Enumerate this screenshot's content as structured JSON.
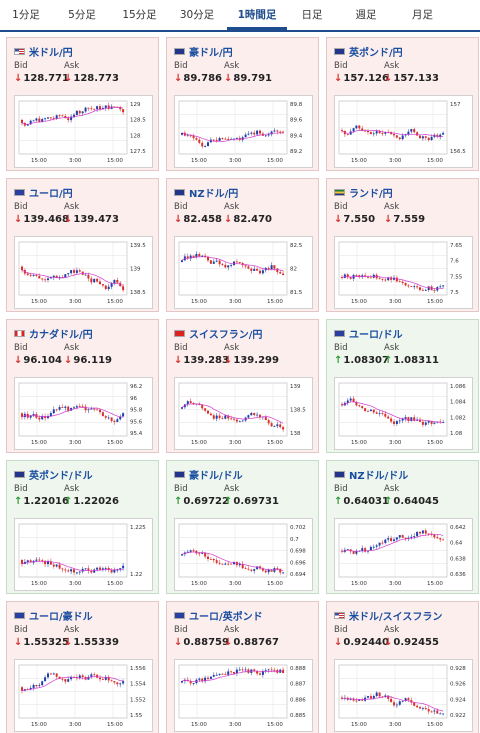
{
  "tabs": [
    "1分足",
    "5分足",
    "15分足",
    "30分足",
    "1時間足",
    "日足",
    "週足",
    "月足"
  ],
  "active_tab": "1時間足",
  "labels": {
    "bid": "Bid",
    "ask": "Ask"
  },
  "colors": {
    "down_bg": "#fdeeee",
    "up_bg": "#eef6ee",
    "down_arrow": "#d9302b",
    "up_arrow": "#2f9a2f",
    "title": "#1a4ea0",
    "ma_line": "#d23ad2",
    "line": "#1f3ea8"
  },
  "pairs": [
    {
      "name": "米ドル/円",
      "flag": "us",
      "dir": "down",
      "bid": "128.771",
      "ask": "128.773",
      "yticks": [
        "129",
        "128.5",
        "128",
        "127.5"
      ],
      "xticks": [
        "15:00",
        "3:00",
        "15:00"
      ]
    },
    {
      "name": "豪ドル/円",
      "flag": "au",
      "dir": "down",
      "bid": "89.786",
      "ask": "89.791",
      "yticks": [
        "89.8",
        "89.6",
        "89.4",
        "89.2"
      ],
      "xticks": [
        "15:00",
        "3:00",
        "15:00"
      ]
    },
    {
      "name": "英ポンド/円",
      "flag": "gb",
      "dir": "down",
      "bid": "157.126",
      "ask": "157.133",
      "yticks": [
        "157",
        "156.5"
      ],
      "xticks": [
        "15:00",
        "3:00",
        "15:00"
      ]
    },
    {
      "name": "ユーロ/円",
      "flag": "eu",
      "dir": "down",
      "bid": "139.468",
      "ask": "139.473",
      "yticks": [
        "139.5",
        "139",
        "138.5"
      ],
      "xticks": [
        "15:00",
        "3:00",
        "15:00"
      ]
    },
    {
      "name": "NZドル/円",
      "flag": "nz",
      "dir": "down",
      "bid": "82.458",
      "ask": "82.470",
      "yticks": [
        "82.5",
        "82",
        "81.5"
      ],
      "xticks": [
        "15:00",
        "3:00",
        "15:00"
      ]
    },
    {
      "name": "ランド/円",
      "flag": "za",
      "dir": "down",
      "bid": "7.550",
      "ask": "7.559",
      "yticks": [
        "7.65",
        "7.6",
        "7.55",
        "7.5"
      ],
      "xticks": [
        "15:00",
        "3:00",
        "15:00"
      ]
    },
    {
      "name": "カナダドル/円",
      "flag": "ca",
      "dir": "down",
      "bid": "96.104",
      "ask": "96.119",
      "yticks": [
        "96.2",
        "96",
        "95.8",
        "95.6",
        "95.4"
      ],
      "xticks": [
        "15:00",
        "3:00",
        "15:00"
      ]
    },
    {
      "name": "スイスフラン/円",
      "flag": "ch",
      "dir": "down",
      "bid": "139.283",
      "ask": "139.299",
      "yticks": [
        "139",
        "138.5",
        "138"
      ],
      "xticks": [
        "15:00",
        "3:00",
        "15:00"
      ]
    },
    {
      "name": "ユーロ/ドル",
      "flag": "eu",
      "dir": "up",
      "bid": "1.08307",
      "ask": "1.08311",
      "yticks": [
        "1.086",
        "1.084",
        "1.082",
        "1.08"
      ],
      "xticks": [
        "15:00",
        "3:00",
        "15:00"
      ]
    },
    {
      "name": "英ポンド/ドル",
      "flag": "gb",
      "dir": "up",
      "bid": "1.22016",
      "ask": "1.22026",
      "yticks": [
        "1.225",
        "1.22"
      ],
      "xticks": [
        "15:00",
        "3:00",
        "15:00"
      ]
    },
    {
      "name": "豪ドル/ドル",
      "flag": "au",
      "dir": "up",
      "bid": "0.69722",
      "ask": "0.69731",
      "yticks": [
        "0.702",
        "0.7",
        "0.698",
        "0.696",
        "0.694"
      ],
      "xticks": [
        "15:00",
        "3:00",
        "15:00"
      ]
    },
    {
      "name": "NZドル/ドル",
      "flag": "nz",
      "dir": "up",
      "bid": "0.64031",
      "ask": "0.64045",
      "yticks": [
        "0.642",
        "0.64",
        "0.638",
        "0.636"
      ],
      "xticks": [
        "15:00",
        "3:00",
        "15:00"
      ]
    },
    {
      "name": "ユーロ/豪ドル",
      "flag": "eu",
      "dir": "down",
      "bid": "1.55325",
      "ask": "1.55339",
      "yticks": [
        "1.556",
        "1.554",
        "1.552",
        "1.55"
      ],
      "xticks": [
        "15:00",
        "3:00",
        "15:00"
      ]
    },
    {
      "name": "ユーロ/英ポンド",
      "flag": "eu",
      "dir": "down",
      "bid": "0.88759",
      "ask": "0.88767",
      "yticks": [
        "0.888",
        "0.887",
        "0.886",
        "0.885"
      ],
      "xticks": [
        "15:00",
        "3:00",
        "15:00"
      ]
    },
    {
      "name": "米ドル/スイスフラン",
      "flag": "us",
      "dir": "down",
      "bid": "0.92440",
      "ask": "0.92455",
      "yticks": [
        "0.928",
        "0.926",
        "0.924",
        "0.922"
      ],
      "xticks": [
        "15:00",
        "3:00",
        "15:00"
      ]
    }
  ]
}
